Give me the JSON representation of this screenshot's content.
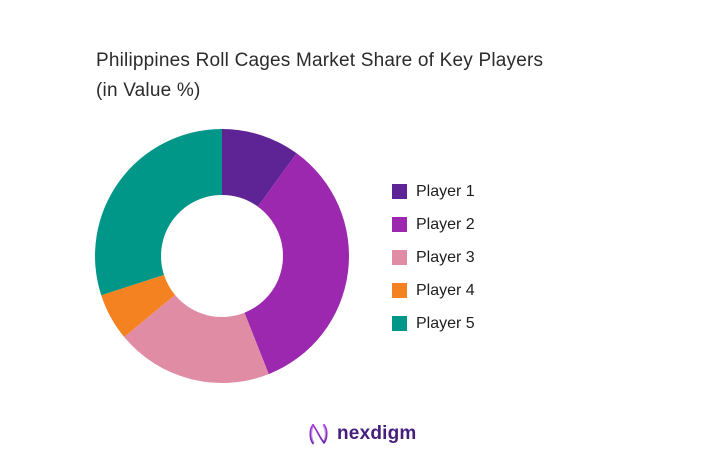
{
  "title": {
    "line1": "Philippines Roll Cages Market Share of Key Players",
    "line2": "(in Value %)"
  },
  "chart_data": {
    "type": "pie",
    "variant": "donut",
    "title": "Philippines Roll Cages Market Share of Key Players (in Value %)",
    "categories": [
      "Player 1",
      "Player 2",
      "Player 3",
      "Player 4",
      "Player 5"
    ],
    "values": [
      10,
      34,
      20,
      6,
      30
    ],
    "unit": "value %",
    "colors": [
      "#5E2496",
      "#9C28B0",
      "#E08CA4",
      "#F58220",
      "#009688"
    ],
    "start_angle_deg": 0,
    "direction": "clockwise",
    "inner_radius_ratio": 0.48,
    "legend_position": "right",
    "data_labels": false
  },
  "logo": {
    "text": "nexdigm",
    "mark": "n-wave-icon",
    "text_color": "#461E7D",
    "mark_gradient": [
      "#A93BDC",
      "#6E23AE"
    ]
  }
}
